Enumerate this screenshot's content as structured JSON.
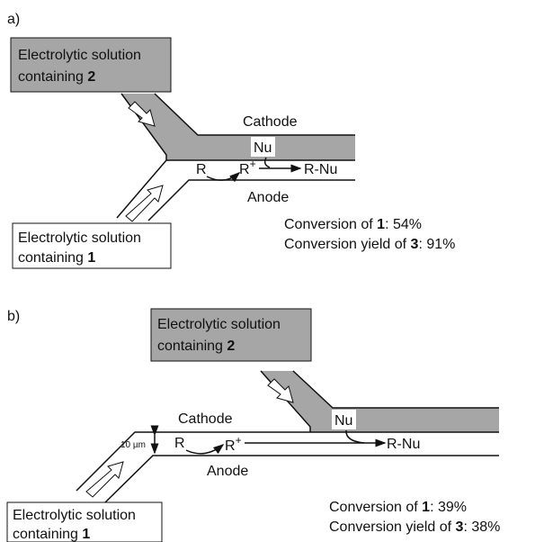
{
  "panels": [
    {
      "label": "a)",
      "box_top": {
        "line1": "Electrolytic solution",
        "line2": "containing",
        "compound": "2"
      },
      "box_bottom": {
        "line1": "Electrolytic solution",
        "line2": "containing",
        "compound": "1"
      },
      "cathode": "Cathode",
      "anode": "Anode",
      "nucleophile": "Nu",
      "reactant": "R",
      "cation": "R",
      "charge": "+",
      "product": "R-Nu",
      "results": [
        {
          "text": "Conversion of",
          "compound": "1",
          "value": ": 54%"
        },
        {
          "text": "Conversion yield of",
          "compound": "3",
          "value": ": 91%"
        }
      ]
    },
    {
      "label": "b)",
      "box_top": {
        "line1": "Electrolytic solution",
        "line2": "containing",
        "compound": "2"
      },
      "box_bottom": {
        "line1": "Electrolytic solution",
        "line2": "containing",
        "compound": "1"
      },
      "cathode": "Cathode",
      "anode": "Anode",
      "nucleophile": "Nu",
      "reactant": "R",
      "cation": "R",
      "charge": "+",
      "product": "R-Nu",
      "gap": "10 µm",
      "results": [
        {
          "text": "Conversion of",
          "compound": "1",
          "value": ": 39%"
        },
        {
          "text": "Conversion yield of",
          "compound": "3",
          "value": ": 38%"
        }
      ]
    }
  ]
}
